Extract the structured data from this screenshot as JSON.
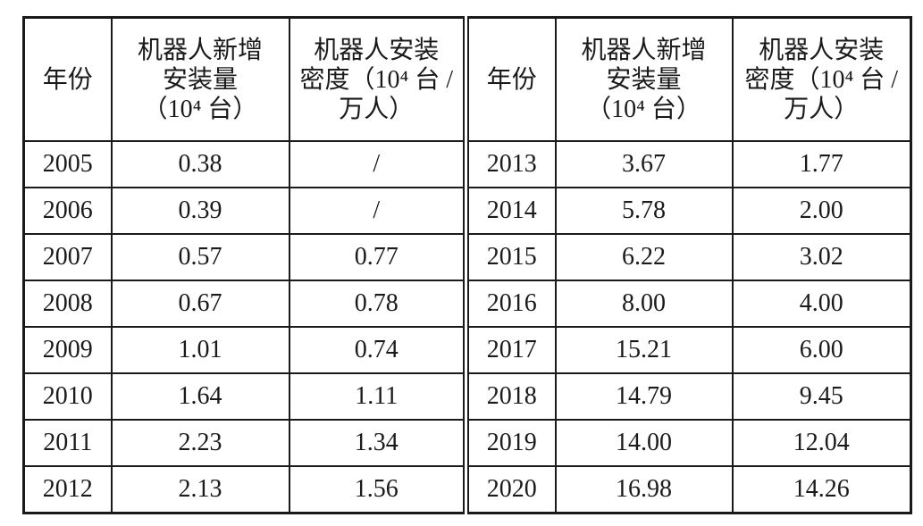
{
  "table": {
    "header": [
      [
        "年份"
      ],
      [
        "机器人新增",
        "安装量",
        "（10⁴ 台）"
      ],
      [
        "机器人安装",
        "密度（10⁴ 台 /",
        "万人）"
      ],
      [
        "年份"
      ],
      [
        "机器人新增",
        "安装量",
        "（10⁴ 台）"
      ],
      [
        "机器人安装",
        "密度（10⁴ 台 /",
        "万人）"
      ]
    ],
    "rows": [
      [
        "2005",
        "0.38",
        "/",
        "2013",
        "3.67",
        "1.77"
      ],
      [
        "2006",
        "0.39",
        "/",
        "2014",
        "5.78",
        "2.00"
      ],
      [
        "2007",
        "0.57",
        "0.77",
        "2015",
        "6.22",
        "3.02"
      ],
      [
        "2008",
        "0.67",
        "0.78",
        "2016",
        "8.00",
        "4.00"
      ],
      [
        "2009",
        "1.01",
        "0.74",
        "2017",
        "15.21",
        "6.00"
      ],
      [
        "2010",
        "1.64",
        "1.11",
        "2018",
        "14.79",
        "9.45"
      ],
      [
        "2011",
        "2.23",
        "1.34",
        "2019",
        "14.00",
        "12.04"
      ],
      [
        "2012",
        "2.13",
        "1.56",
        "2020",
        "16.98",
        "14.26"
      ]
    ]
  }
}
